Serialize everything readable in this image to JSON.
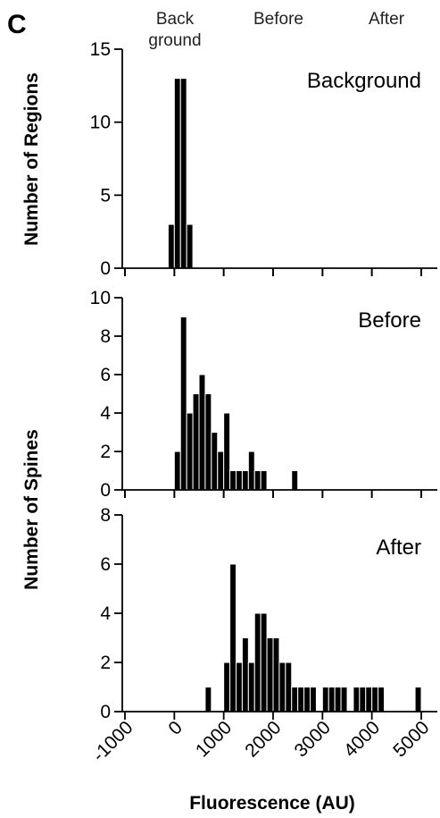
{
  "panel_letter": "C",
  "header_labels": [
    {
      "lines": [
        "Back",
        "ground"
      ]
    },
    {
      "lines": [
        "Before"
      ]
    },
    {
      "lines": [
        "After"
      ]
    }
  ],
  "chart_data": [
    {
      "type": "bar",
      "title": "Background",
      "ylabel": "Number of Regions",
      "ylim": [
        0,
        15
      ],
      "yticks": [
        0,
        5,
        10,
        15
      ],
      "bin_width": 125,
      "x": [
        -125,
        0,
        125,
        250
      ],
      "values": [
        3,
        13,
        13,
        3
      ]
    },
    {
      "type": "bar",
      "title": "Before",
      "ylabel": "",
      "ylim": [
        0,
        10
      ],
      "yticks": [
        0,
        2,
        4,
        6,
        8,
        10
      ],
      "bin_width": 125,
      "x": [
        0,
        125,
        250,
        375,
        500,
        625,
        750,
        875,
        1000,
        1125,
        1250,
        1375,
        1500,
        1625,
        1750,
        2375
      ],
      "values": [
        2,
        9,
        4,
        5,
        6,
        5,
        3,
        2,
        4,
        1,
        1,
        1,
        2,
        1,
        1,
        1
      ]
    },
    {
      "type": "bar",
      "title": "After",
      "ylabel": "",
      "ylim": [
        0,
        8
      ],
      "yticks": [
        0,
        2,
        4,
        6,
        8
      ],
      "bin_width": 125,
      "x": [
        625,
        1000,
        1125,
        1250,
        1375,
        1500,
        1625,
        1750,
        1875,
        2000,
        2125,
        2250,
        2375,
        2500,
        2625,
        2750,
        3000,
        3125,
        3250,
        3375,
        3625,
        3750,
        3875,
        4000,
        4125,
        4875
      ],
      "values": [
        1,
        2,
        6,
        2,
        3,
        2,
        4,
        4,
        3,
        3,
        2,
        2,
        1,
        1,
        1,
        1,
        1,
        1,
        1,
        1,
        1,
        1,
        1,
        1,
        1,
        1
      ]
    }
  ],
  "shared_ylabel": "Number of Spines",
  "xlabel": "Fluorescence (AU)",
  "xlim": [
    -1000,
    5000
  ],
  "xticks": [
    -1000,
    0,
    1000,
    2000,
    3000,
    4000,
    5000
  ]
}
